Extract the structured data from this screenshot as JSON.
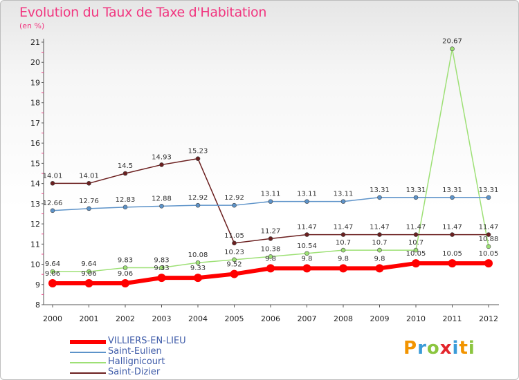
{
  "title": "Evolution du Taux de Taxe d'Habitation",
  "subtitle": "(en %)",
  "logo": {
    "letters": [
      "P",
      "r",
      "o",
      "x",
      "i",
      "t",
      "i"
    ],
    "colors": [
      "#f29400",
      "#3a9bd8",
      "#8bc53f",
      "#e3262c",
      "#3a9bd8",
      "#f29400",
      "#8bc53f"
    ]
  },
  "chart_data": {
    "type": "line",
    "x": [
      "2000",
      "2001",
      "2002",
      "2003",
      "2004",
      "2005",
      "2006",
      "2007",
      "2008",
      "2009",
      "2010",
      "2011",
      "2012"
    ],
    "yticks": [
      "8",
      "9",
      "10",
      "11",
      "12",
      "13",
      "14",
      "15",
      "16",
      "17",
      "18",
      "19",
      "20",
      "21"
    ],
    "ylim": [
      8,
      21
    ],
    "grid": false,
    "legend_position": "bottom-left",
    "series": [
      {
        "name": "VILLIERS-EN-LIEU",
        "color": "#ff0000",
        "width": 6,
        "markerRadius": 6,
        "values": [
          9.06,
          9.06,
          9.06,
          9.33,
          9.33,
          9.52,
          9.8,
          9.8,
          9.8,
          9.8,
          10.05,
          10.05,
          10.05
        ],
        "labels": [
          "9.06",
          "9.06",
          "9.06",
          "9.33",
          "9.33",
          "9.52",
          "9.8",
          "9.8",
          "9.8",
          "9.8",
          "10.05",
          "10.05",
          "10.05"
        ]
      },
      {
        "name": "Saint-Eulien",
        "color": "#5d93c9",
        "width": 1.5,
        "markerRadius": 3,
        "values": [
          12.66,
          12.76,
          12.83,
          12.88,
          12.92,
          12.92,
          13.11,
          13.11,
          13.11,
          13.31,
          13.31,
          13.31,
          13.31
        ],
        "labels": [
          "12.66",
          "12.76",
          "12.83",
          "12.88",
          "12.92",
          "12.92",
          "13.11",
          "13.11",
          "13.11",
          "13.31",
          "13.31",
          "13.31",
          "13.31"
        ]
      },
      {
        "name": "Hallignicourt",
        "color": "#9de075",
        "width": 1.5,
        "markerRadius": 3,
        "values": [
          9.64,
          9.64,
          9.83,
          9.83,
          10.08,
          10.23,
          10.38,
          10.54,
          10.7,
          10.7,
          10.7,
          20.67,
          10.88
        ],
        "labels": [
          "9.64",
          "9.64",
          "9.83",
          "9.83",
          "10.08",
          "10.23",
          "10.38",
          "10.54",
          "10.7",
          "10.7",
          "10.7",
          "20.67",
          "10.88"
        ]
      },
      {
        "name": "Saint-Dizier",
        "color": "#6b1f1f",
        "width": 1.5,
        "markerRadius": 3,
        "values": [
          14.01,
          14.01,
          14.5,
          14.93,
          15.23,
          11.05,
          11.27,
          11.47,
          11.47,
          11.47,
          11.47,
          11.47,
          11.47
        ],
        "labels": [
          "14.01",
          "14.01",
          "14.5",
          "14.93",
          "15.23",
          "11.05",
          "11.27",
          "11.47",
          "11.47",
          "11.47",
          "11.47",
          "11.47",
          "11.47"
        ]
      }
    ]
  }
}
